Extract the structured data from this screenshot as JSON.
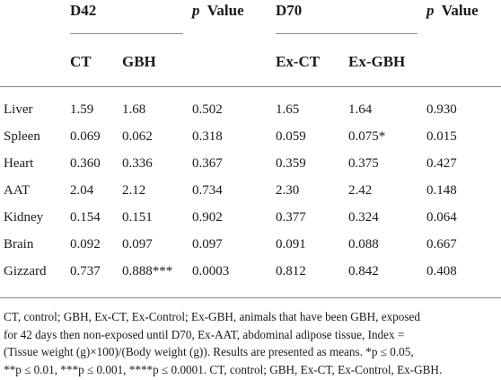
{
  "header": {
    "d42": "D42",
    "p_italic": "p",
    "p_value": "Value",
    "d70": "D70",
    "col_ct": "CT",
    "col_gbh": "GBH",
    "col_exct": "Ex-CT",
    "col_exgbh": "Ex-GBH"
  },
  "rows": [
    {
      "label": "Liver",
      "ct": "1.59",
      "gbh": "1.68",
      "p1": "0.502",
      "exct": "1.65",
      "exgbh": "1.64",
      "p2": "0.930"
    },
    {
      "label": "Spleen",
      "ct": "0.069",
      "gbh": "0.062",
      "p1": "0.318",
      "exct": "0.059",
      "exgbh": "0.075*",
      "p2": "0.015"
    },
    {
      "label": "Heart",
      "ct": "0.360",
      "gbh": "0.336",
      "p1": "0.367",
      "exct": "0.359",
      "exgbh": "0.375",
      "p2": "0.427"
    },
    {
      "label": "AAT",
      "ct": "2.04",
      "gbh": "2.12",
      "p1": "0.734",
      "exct": "2.30",
      "exgbh": "2.42",
      "p2": "0.148"
    },
    {
      "label": "Kidney",
      "ct": "0.154",
      "gbh": "0.151",
      "p1": "0.902",
      "exct": "0.377",
      "exgbh": "0.324",
      "p2": "0.064"
    },
    {
      "label": "Brain",
      "ct": "0.092",
      "gbh": "0.097",
      "p1": "0.097",
      "exct": "0.091",
      "exgbh": "0.088",
      "p2": "0.667"
    },
    {
      "label": "Gizzard",
      "ct": "0.737",
      "gbh": "0.888***",
      "p1": "0.0003",
      "exct": "0.812",
      "exgbh": "0.842",
      "p2": "0.408"
    }
  ],
  "footnote": {
    "line1": "CT, control; GBH, Ex-CT, Ex-Control; Ex-GBH, animals that have been GBH, exposed",
    "line2": "for 42 days then non-exposed until D70, Ex-AAT, abdominal adipose tissue, Index =",
    "line3": "(Tissue weight (g)×100)/(Body weight (g)). Results are presented as means. *p ≤ 0.05,",
    "line4": "**p ≤ 0.01, ***p ≤ 0.001, ****p ≤ 0.0001. CT, control; GBH, Ex-CT, Ex-Control, Ex-GBH."
  }
}
